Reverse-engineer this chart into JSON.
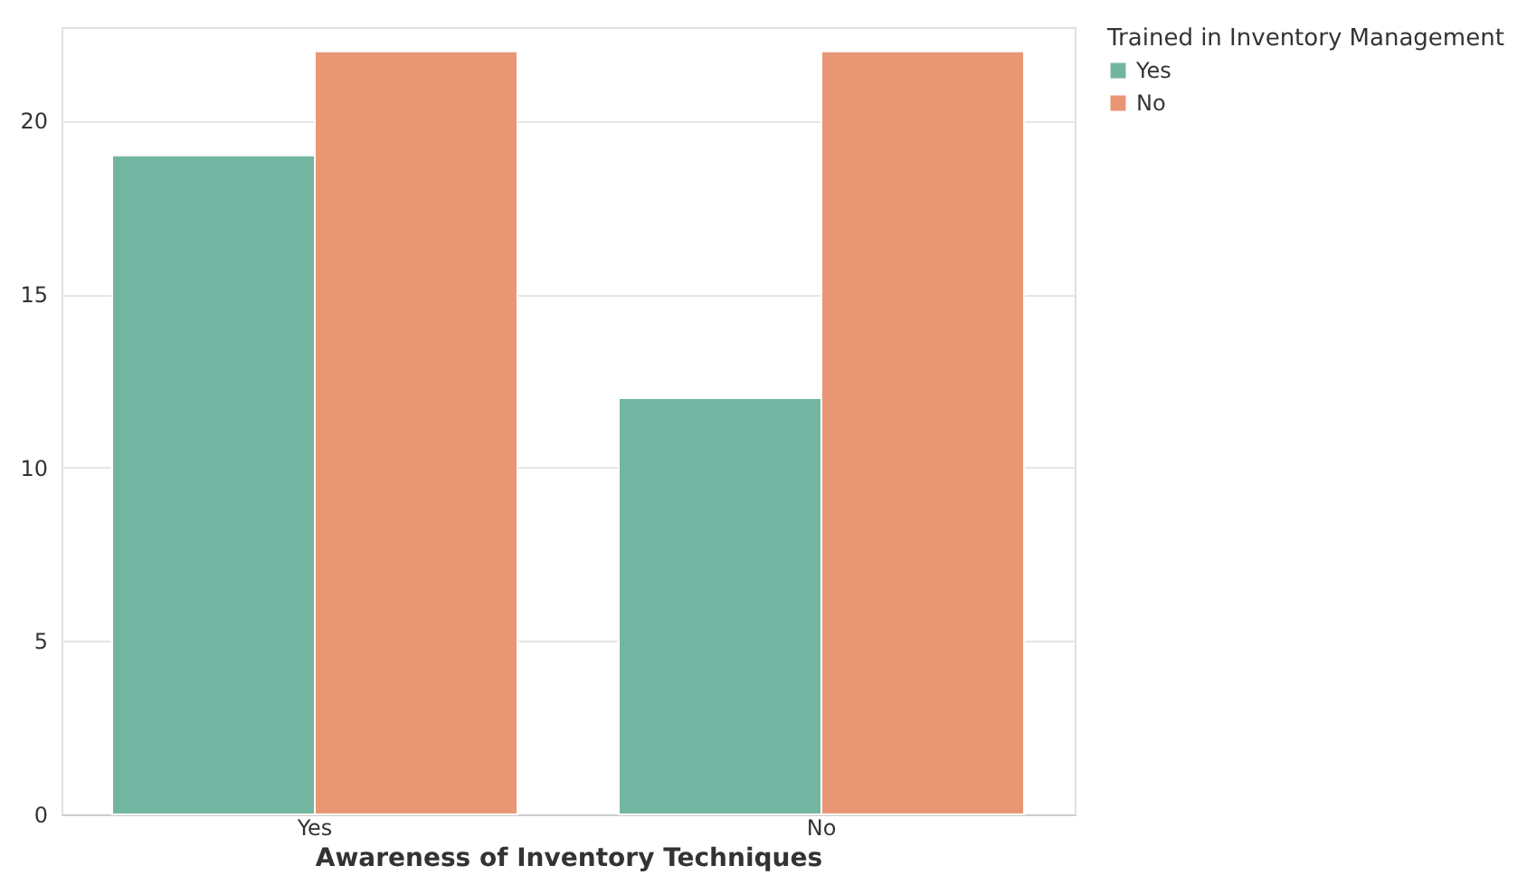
{
  "chart_data": {
    "type": "bar",
    "xlabel": "Awareness of Inventory Techniques",
    "legend_title": "Trained in Inventory Management",
    "categories": [
      "Yes",
      "No"
    ],
    "series": [
      {
        "name": "Yes",
        "color": "#72b6a1",
        "values": [
          19,
          12
        ]
      },
      {
        "name": "No",
        "color": "#e99675",
        "values": [
          22,
          22
        ]
      }
    ],
    "ylim": [
      0,
      22.7
    ],
    "yticks": [
      0,
      5,
      10,
      15,
      20
    ],
    "grid": "y",
    "legend": "top right"
  }
}
